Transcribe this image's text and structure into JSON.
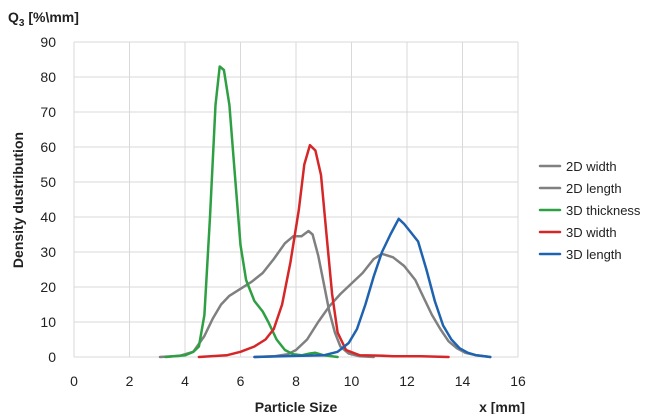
{
  "chart_data": {
    "type": "line",
    "title": "",
    "xlabel": "Particle Size",
    "xunit": "x [mm]",
    "ylabel": "Density dustribution",
    "yunit_main": "Q",
    "yunit_sub": "3",
    "yunit_rest": " [%\\mm]",
    "xlim": [
      0,
      16
    ],
    "ylim": [
      0,
      90
    ],
    "xticks": [
      0,
      2,
      4,
      6,
      8,
      10,
      12,
      14,
      16
    ],
    "yticks": [
      0,
      10,
      20,
      30,
      40,
      50,
      60,
      70,
      80,
      90
    ],
    "grid": true,
    "legend_position": "right",
    "series": [
      {
        "name": "2D width",
        "color": "#808080",
        "points": [
          [
            3.1,
            0
          ],
          [
            3.8,
            0.3
          ],
          [
            4.3,
            1.5
          ],
          [
            4.7,
            6
          ],
          [
            5.0,
            11
          ],
          [
            5.3,
            15
          ],
          [
            5.6,
            17.5
          ],
          [
            6.0,
            19.5
          ],
          [
            6.4,
            21.5
          ],
          [
            6.8,
            24
          ],
          [
            7.2,
            28
          ],
          [
            7.6,
            32.5
          ],
          [
            7.9,
            34.5
          ],
          [
            8.2,
            34.5
          ],
          [
            8.45,
            36
          ],
          [
            8.6,
            35
          ],
          [
            8.8,
            29
          ],
          [
            9.0,
            21
          ],
          [
            9.2,
            13
          ],
          [
            9.4,
            7
          ],
          [
            9.6,
            3
          ],
          [
            9.9,
            1
          ],
          [
            10.3,
            0.2
          ],
          [
            10.8,
            0
          ]
        ]
      },
      {
        "name": "2D length",
        "color": "#808080",
        "points": [
          [
            6.5,
            0
          ],
          [
            7.2,
            0.2
          ],
          [
            7.7,
            0.8
          ],
          [
            8.0,
            2
          ],
          [
            8.4,
            5
          ],
          [
            8.8,
            10
          ],
          [
            9.2,
            14.5
          ],
          [
            9.6,
            18
          ],
          [
            10.0,
            21
          ],
          [
            10.4,
            24
          ],
          [
            10.8,
            28
          ],
          [
            11.1,
            29.5
          ],
          [
            11.5,
            28.5
          ],
          [
            11.9,
            26
          ],
          [
            12.3,
            22
          ],
          [
            12.6,
            17
          ],
          [
            12.9,
            12
          ],
          [
            13.2,
            8
          ],
          [
            13.5,
            4.5
          ],
          [
            13.8,
            2.5
          ],
          [
            14.1,
            1.2
          ],
          [
            14.5,
            0.5
          ],
          [
            15.0,
            0
          ]
        ]
      },
      {
        "name": "3D thickness",
        "color": "#2ea043",
        "points": [
          [
            3.3,
            0
          ],
          [
            4.0,
            0.5
          ],
          [
            4.3,
            1.5
          ],
          [
            4.5,
            3
          ],
          [
            4.7,
            12
          ],
          [
            4.9,
            40
          ],
          [
            5.1,
            72
          ],
          [
            5.25,
            83
          ],
          [
            5.4,
            82
          ],
          [
            5.6,
            72
          ],
          [
            5.8,
            52
          ],
          [
            6.0,
            32
          ],
          [
            6.2,
            22
          ],
          [
            6.5,
            16
          ],
          [
            6.8,
            13
          ],
          [
            7.0,
            10
          ],
          [
            7.3,
            5
          ],
          [
            7.6,
            2
          ],
          [
            7.9,
            0.8
          ],
          [
            8.2,
            0.5
          ],
          [
            8.5,
            1
          ],
          [
            8.7,
            1.2
          ],
          [
            9.0,
            0.5
          ],
          [
            9.5,
            0
          ]
        ]
      },
      {
        "name": "3D width",
        "color": "#d62728",
        "points": [
          [
            4.5,
            0
          ],
          [
            5.5,
            0.5
          ],
          [
            6.0,
            1.5
          ],
          [
            6.5,
            3
          ],
          [
            6.9,
            5
          ],
          [
            7.2,
            8
          ],
          [
            7.5,
            15
          ],
          [
            7.8,
            27
          ],
          [
            8.1,
            42
          ],
          [
            8.3,
            55
          ],
          [
            8.5,
            60.5
          ],
          [
            8.7,
            59
          ],
          [
            8.9,
            52
          ],
          [
            9.1,
            35
          ],
          [
            9.3,
            18
          ],
          [
            9.5,
            7
          ],
          [
            9.8,
            2
          ],
          [
            10.3,
            0.5
          ],
          [
            11.0,
            0.4
          ],
          [
            11.5,
            0.2
          ],
          [
            12.5,
            0.2
          ],
          [
            13.5,
            0
          ]
        ]
      },
      {
        "name": "3D length",
        "color": "#1f63b0",
        "points": [
          [
            6.5,
            0
          ],
          [
            8.0,
            0.3
          ],
          [
            9.0,
            0.5
          ],
          [
            9.5,
            1.5
          ],
          [
            9.9,
            4
          ],
          [
            10.2,
            8
          ],
          [
            10.5,
            15
          ],
          [
            10.8,
            23
          ],
          [
            11.1,
            30
          ],
          [
            11.4,
            35
          ],
          [
            11.7,
            39.5
          ],
          [
            11.9,
            38
          ],
          [
            12.1,
            36
          ],
          [
            12.4,
            33
          ],
          [
            12.7,
            25
          ],
          [
            13.0,
            16
          ],
          [
            13.3,
            9
          ],
          [
            13.6,
            5
          ],
          [
            13.9,
            2.5
          ],
          [
            14.2,
            1.2
          ],
          [
            14.5,
            0.5
          ],
          [
            15.0,
            0
          ]
        ]
      }
    ]
  }
}
